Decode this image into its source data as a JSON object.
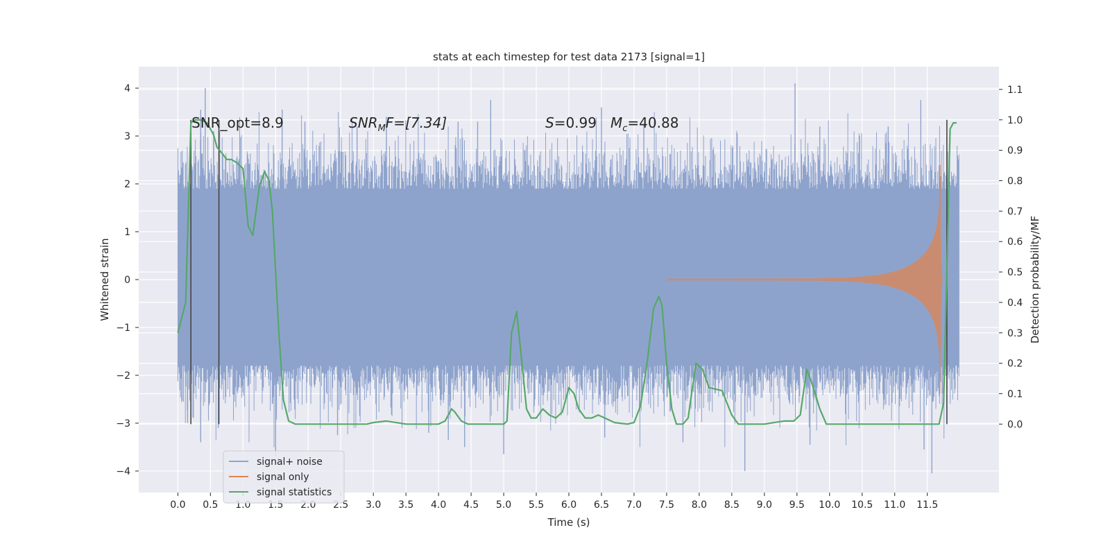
{
  "chart_data": {
    "type": "line",
    "title": "stats at each timestep for test data 2173 [signal=1]",
    "xlabel": "Time (s)",
    "ylabel": "Whitened strain",
    "y2label": "Detection probability/MF",
    "xlim": [
      -0.6,
      12.6
    ],
    "ylim": [
      -4.45,
      4.45
    ],
    "y2lim": [
      -0.225,
      1.175
    ],
    "x_ticks": [
      0.0,
      0.5,
      1.0,
      1.5,
      2.0,
      2.5,
      3.0,
      3.5,
      4.0,
      4.5,
      5.0,
      5.5,
      6.0,
      6.5,
      7.0,
      7.5,
      8.0,
      8.5,
      9.0,
      9.5,
      10.0,
      10.5,
      11.0,
      11.5
    ],
    "x_tick_labels": [
      "0.0",
      "0.5",
      "1.0",
      "1.5",
      "2.0",
      "2.5",
      "3.0",
      "3.5",
      "4.0",
      "4.5",
      "5.0",
      "5.5",
      "6.0",
      "6.5",
      "7.0",
      "7.5",
      "8.0",
      "8.5",
      "9.0",
      "9.5",
      "10.0",
      "10.5",
      "11.0",
      "11.5"
    ],
    "y_ticks": [
      -4,
      -3,
      -2,
      -1,
      0,
      1,
      2,
      3,
      4
    ],
    "y_tick_labels": [
      "−4",
      "−3",
      "−2",
      "−1",
      "0",
      "1",
      "2",
      "3",
      "4"
    ],
    "y2_ticks": [
      0.0,
      0.1,
      0.2,
      0.3,
      0.4,
      0.5,
      0.6,
      0.7,
      0.8,
      0.9,
      1.0,
      1.1
    ],
    "y2_tick_labels": [
      "0.0",
      "0.1",
      "0.2",
      "0.3",
      "0.4",
      "0.5",
      "0.6",
      "0.7",
      "0.8",
      "0.9",
      "1.0",
      "1.1"
    ],
    "grid": true,
    "legend_placement": "lower-left",
    "annotations": {
      "snr_opt": "SNR_opt=8.9",
      "snr_mf_prefix": "SNR",
      "snr_mf_sub": "M",
      "snr_mf_rest": "F=[7.34]",
      "s_symbol": "S",
      "s_value": "=0.99",
      "mc_symbol": "M",
      "mc_sub": "c",
      "mc_value": "=40.88"
    },
    "vertical_markers_s": [
      0.2,
      0.63,
      11.8
    ],
    "series": [
      {
        "name": "signal+ noise",
        "color": "#8ea3cc",
        "axis": "left",
        "style": "noise",
        "x_range": [
          0.0,
          11.99
        ],
        "typical_envelope": [
          -1.8,
          1.9
        ],
        "peaks": [
          {
            "x": 0.08,
            "y": 2.45
          },
          {
            "x": 0.35,
            "y": 3.55
          },
          {
            "x": 0.42,
            "y": 4.0
          },
          {
            "x": 0.55,
            "y": 3.1
          },
          {
            "x": 1.6,
            "y": 3.55
          },
          {
            "x": 1.95,
            "y": 3.3
          },
          {
            "x": 2.75,
            "y": 3.2
          },
          {
            "x": 3.2,
            "y": 3.4
          },
          {
            "x": 4.3,
            "y": 3.3
          },
          {
            "x": 4.6,
            "y": 3.3
          },
          {
            "x": 4.8,
            "y": 3.75
          },
          {
            "x": 6.5,
            "y": 3.6
          },
          {
            "x": 7.15,
            "y": 3.25
          },
          {
            "x": 9.47,
            "y": 4.1
          },
          {
            "x": 9.85,
            "y": 3.2
          },
          {
            "x": 10.9,
            "y": 3.2
          },
          {
            "x": 11.4,
            "y": 3.75
          },
          {
            "x": 0.15,
            "y": -3.0
          },
          {
            "x": 0.35,
            "y": -3.4
          },
          {
            "x": 0.62,
            "y": -3.1
          },
          {
            "x": 1.5,
            "y": -3.7
          },
          {
            "x": 2.45,
            "y": -3.25
          },
          {
            "x": 3.85,
            "y": -3.2
          },
          {
            "x": 4.15,
            "y": -3.35
          },
          {
            "x": 4.4,
            "y": -3.5
          },
          {
            "x": 5.0,
            "y": -3.65
          },
          {
            "x": 6.55,
            "y": -3.3
          },
          {
            "x": 7.75,
            "y": -3.4
          },
          {
            "x": 8.7,
            "y": -4.0
          },
          {
            "x": 9.7,
            "y": -3.45
          },
          {
            "x": 11.45,
            "y": -3.55
          },
          {
            "x": 11.57,
            "y": -4.05
          }
        ]
      },
      {
        "name": "signal only",
        "color": "#dd8452",
        "axis": "left",
        "style": "chirp",
        "start_s": 7.5,
        "merger_s": 11.7,
        "peak_amplitude": 2.4
      },
      {
        "name": "signal statistics",
        "color": "#55a868",
        "axis": "right",
        "style": "line",
        "x": [
          0.0,
          0.12,
          0.2,
          0.27,
          0.35,
          0.45,
          0.55,
          0.6,
          0.68,
          0.75,
          0.82,
          0.9,
          1.0,
          1.08,
          1.15,
          1.25,
          1.33,
          1.4,
          1.45,
          1.5,
          1.55,
          1.62,
          1.7,
          1.8,
          2.0,
          2.3,
          2.6,
          2.9,
          3.0,
          3.2,
          3.5,
          3.8,
          4.0,
          4.1,
          4.2,
          4.25,
          4.35,
          4.45,
          4.6,
          4.8,
          5.0,
          5.05,
          5.12,
          5.2,
          5.28,
          5.35,
          5.42,
          5.5,
          5.6,
          5.7,
          5.8,
          5.9,
          6.0,
          6.08,
          6.15,
          6.25,
          6.35,
          6.45,
          6.55,
          6.7,
          6.9,
          7.0,
          7.1,
          7.2,
          7.3,
          7.38,
          7.43,
          7.5,
          7.58,
          7.65,
          7.75,
          7.83,
          7.95,
          8.05,
          8.15,
          8.35,
          8.5,
          8.6,
          8.8,
          9.0,
          9.15,
          9.3,
          9.45,
          9.55,
          9.65,
          9.72,
          9.78,
          9.85,
          9.95,
          10.05,
          10.4,
          10.8,
          11.2,
          11.6,
          11.68,
          11.75,
          11.8,
          11.85,
          11.9,
          11.95
        ],
        "y": [
          0.3,
          0.4,
          0.99,
          1.0,
          1.0,
          0.99,
          0.95,
          0.91,
          0.89,
          0.87,
          0.87,
          0.86,
          0.84,
          0.65,
          0.62,
          0.78,
          0.83,
          0.8,
          0.7,
          0.5,
          0.3,
          0.08,
          0.01,
          0.0,
          0.0,
          0.0,
          0.0,
          0.0,
          0.005,
          0.01,
          0.0,
          0.0,
          0.0,
          0.01,
          0.05,
          0.04,
          0.01,
          0.0,
          0.0,
          0.0,
          0.0,
          0.01,
          0.3,
          0.37,
          0.2,
          0.05,
          0.02,
          0.02,
          0.05,
          0.03,
          0.02,
          0.04,
          0.12,
          0.1,
          0.05,
          0.02,
          0.02,
          0.03,
          0.02,
          0.005,
          0.0,
          0.005,
          0.06,
          0.2,
          0.38,
          0.42,
          0.39,
          0.2,
          0.05,
          0.0,
          0.0,
          0.02,
          0.2,
          0.18,
          0.12,
          0.11,
          0.03,
          0.0,
          0.0,
          0.0,
          0.005,
          0.01,
          0.01,
          0.03,
          0.18,
          0.14,
          0.1,
          0.05,
          0.0,
          0.0,
          0.0,
          0.0,
          0.0,
          0.0,
          0.0,
          0.07,
          0.5,
          0.97,
          0.99,
          0.99
        ]
      }
    ]
  }
}
